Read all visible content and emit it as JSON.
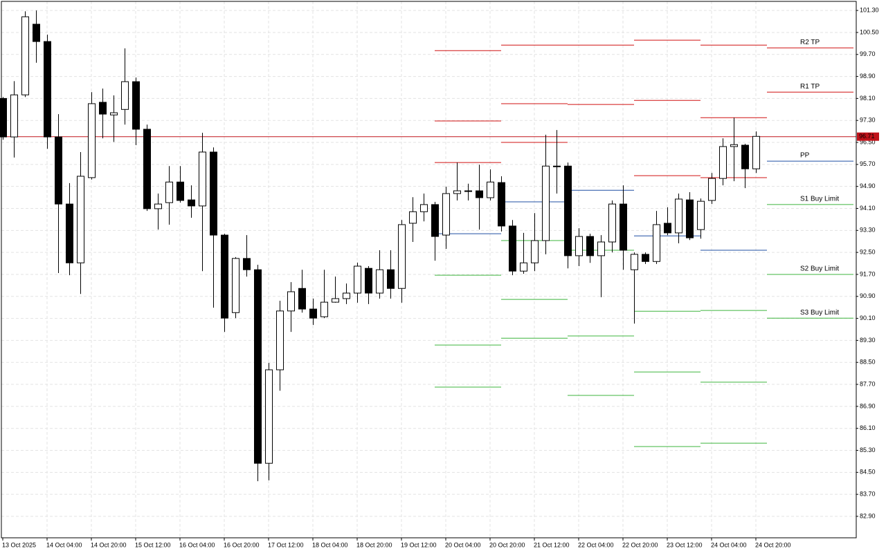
{
  "chart_data": {
    "type": "candlestick",
    "categories": [
      "13 Oct 2025",
      null,
      null,
      null,
      "14 Oct 04:00",
      null,
      null,
      null,
      "14 Oct 20:00",
      null,
      null,
      null,
      "15 Oct 12:00",
      null,
      null,
      null,
      "16 Oct 04:00",
      null,
      null,
      null,
      "16 Oct 20:00",
      null,
      null,
      null,
      "17 Oct 12:00",
      null,
      null,
      null,
      "18 Oct 04:00",
      null,
      null,
      null,
      "18 Oct 20:00",
      null,
      null,
      null,
      "19 Oct 12:00",
      null,
      null,
      null,
      "20 Oct 04:00",
      null,
      null,
      null,
      "20 Oct 20:00",
      null,
      null,
      null,
      "21 Oct 12:00",
      null,
      null,
      null,
      "22 Oct 04:00",
      null,
      null,
      null,
      "22 Oct 20:00",
      null,
      null,
      null,
      "23 Oct 12:00",
      null,
      null,
      null,
      "24 Oct 04:00",
      null,
      null,
      null,
      "24 Oct 20:00"
    ],
    "ohlc": {
      "open": [
        98.1,
        96.7,
        98.23,
        100.8,
        100.17,
        96.7,
        94.26,
        92.12,
        95.22,
        97.96,
        97.5,
        97.7,
        98.71,
        96.98,
        94.09,
        94.31,
        95.06,
        94.41,
        94.19,
        96.15,
        93.13,
        90.31,
        92.28,
        91.87,
        84.83,
        88.23,
        90.37,
        91.19,
        90.44,
        90.16,
        90.69,
        90.82,
        91.02,
        91.92,
        91.02,
        91.87,
        91.19,
        93.56,
        93.98,
        94.24,
        93.13,
        94.64,
        94.74,
        94.74,
        94.49,
        95.04,
        93.46,
        91.82,
        92.12,
        92.93,
        95.64,
        95.64,
        92.38,
        93.08,
        92.38,
        92.88,
        94.26,
        91.87,
        92.43,
        92.17,
        93.56,
        93.21,
        94.41,
        93.33,
        94.39,
        95.19,
        96.35,
        96.4,
        95.54
      ],
      "high": [
        98.15,
        98.73,
        101.27,
        101.3,
        100.42,
        97.53,
        95.02,
        96.15,
        98.33,
        98.46,
        98.21,
        99.92,
        98.86,
        97.15,
        94.64,
        95.64,
        95.64,
        94.94,
        96.85,
        96.32,
        93.18,
        92.33,
        93.13,
        92.05,
        88.48,
        90.74,
        91.42,
        91.87,
        90.82,
        91.87,
        91.62,
        91.37,
        92.13,
        92.0,
        92.58,
        92.58,
        93.68,
        94.51,
        94.64,
        94.34,
        94.89,
        95.77,
        95.0,
        95.69,
        95.52,
        95.27,
        93.68,
        93.21,
        93.93,
        96.78,
        96.95,
        95.77,
        93.38,
        93.18,
        93.13,
        94.39,
        94.94,
        92.5,
        92.5,
        94.01,
        94.14,
        94.64,
        94.69,
        94.46,
        95.39,
        96.65,
        97.4,
        96.45,
        96.9
      ],
      "low": [
        96.6,
        95.95,
        98.15,
        99.4,
        96.27,
        91.75,
        91.67,
        90.99,
        95.15,
        96.65,
        96.52,
        97.15,
        96.4,
        94.01,
        93.33,
        93.51,
        94.31,
        93.76,
        91.82,
        90.49,
        89.61,
        90.11,
        91.62,
        84.18,
        84.21,
        87.47,
        89.61,
        90.31,
        89.86,
        90.11,
        90.67,
        90.62,
        90.67,
        90.62,
        90.82,
        90.82,
        90.67,
        92.88,
        93.63,
        92.2,
        92.63,
        94.39,
        94.39,
        93.33,
        94.39,
        93.26,
        91.67,
        91.72,
        91.82,
        92.43,
        94.64,
        91.92,
        92.0,
        92.12,
        90.87,
        92.5,
        91.87,
        89.91,
        92.08,
        92.08,
        93.13,
        92.83,
        92.95,
        93.0,
        94.26,
        94.94,
        95.09,
        94.84,
        95.39
      ],
      "close": [
        96.7,
        98.23,
        101.07,
        100.17,
        96.7,
        94.26,
        92.12,
        95.27,
        97.91,
        97.53,
        97.58,
        98.71,
        96.98,
        94.09,
        94.26,
        95.06,
        94.39,
        94.19,
        96.15,
        93.13,
        90.11,
        92.28,
        91.87,
        84.83,
        88.23,
        90.37,
        91.07,
        90.44,
        90.11,
        90.69,
        90.82,
        91.02,
        92.0,
        91.02,
        91.87,
        91.19,
        93.51,
        93.98,
        94.24,
        93.08,
        94.64,
        94.74,
        94.72,
        94.49,
        95.06,
        93.46,
        91.82,
        92.12,
        92.93,
        95.64,
        95.62,
        92.38,
        93.08,
        92.38,
        92.88,
        94.26,
        92.58,
        92.43,
        92.17,
        93.51,
        93.21,
        94.44,
        93.03,
        94.36,
        95.19,
        96.35,
        96.42,
        95.54,
        96.72
      ]
    },
    "bull_color": "#ffffff",
    "bear_color": "#000000",
    "ylim": [
      82.12,
      101.63
    ],
    "yticks": [
      {
        "value": 101.3,
        "label": "101.30"
      },
      {
        "value": 100.5,
        "label": "100.50"
      },
      {
        "value": 99.7,
        "label": "99.70"
      },
      {
        "value": 98.9,
        "label": "98.90"
      },
      {
        "value": 98.1,
        "label": "98.10"
      },
      {
        "value": 97.3,
        "label": "97.30"
      },
      {
        "value": 96.5,
        "label": "96.50"
      },
      {
        "value": 95.7,
        "label": "95.70"
      },
      {
        "value": 94.9,
        "label": "94.90"
      },
      {
        "value": 94.1,
        "label": "94.10"
      },
      {
        "value": 93.3,
        "label": "93.30"
      },
      {
        "value": 92.5,
        "label": "92.50"
      },
      {
        "value": 91.7,
        "label": "91.70"
      },
      {
        "value": 90.9,
        "label": "90.90"
      },
      {
        "value": 90.1,
        "label": "90.10"
      },
      {
        "value": 89.3,
        "label": "89.30"
      },
      {
        "value": 88.5,
        "label": "88.50"
      },
      {
        "value": 87.7,
        "label": "87.70"
      },
      {
        "value": 86.9,
        "label": "86.90"
      },
      {
        "value": 86.1,
        "label": "86.10"
      },
      {
        "value": 85.3,
        "label": "85.30"
      },
      {
        "value": 84.5,
        "label": "84.50"
      },
      {
        "value": 83.7,
        "label": "83.70"
      },
      {
        "value": 82.9,
        "label": "82.90"
      }
    ],
    "grid": true,
    "current_price": 96.71,
    "current_price_color": "#c0121a",
    "sessions": [
      {
        "from": 39,
        "to": 45,
        "levels": [
          {
            "value": 99.84,
            "color": "#d01010"
          },
          {
            "value": 97.28,
            "color": "#d01010"
          },
          {
            "value": 95.77,
            "color": "#d01010"
          },
          {
            "value": 93.18,
            "color": "#1f4fa3"
          },
          {
            "value": 91.67,
            "color": "#3cb43c"
          },
          {
            "value": 89.13,
            "color": "#3cb43c"
          },
          {
            "value": 87.6,
            "color": "#3cb43c"
          }
        ]
      },
      {
        "from": 45,
        "to": 51,
        "levels": [
          {
            "value": 100.04,
            "color": "#d01010"
          },
          {
            "value": 97.91,
            "color": "#d01010"
          },
          {
            "value": 96.5,
            "color": "#d01010"
          },
          {
            "value": 94.34,
            "color": "#1f4fa3"
          },
          {
            "value": 92.93,
            "color": "#3cb43c"
          },
          {
            "value": 90.79,
            "color": "#3cb43c"
          },
          {
            "value": 89.38,
            "color": "#3cb43c"
          }
        ]
      },
      {
        "from": 51,
        "to": 57,
        "levels": [
          {
            "value": 100.04,
            "color": "#d01010"
          },
          {
            "value": 97.88,
            "color": "#d01010"
          },
          {
            "value": 94.76,
            "color": "#1f4fa3"
          },
          {
            "value": 92.58,
            "color": "#3cb43c"
          },
          {
            "value": 89.46,
            "color": "#3cb43c"
          },
          {
            "value": 87.3,
            "color": "#3cb43c"
          }
        ]
      },
      {
        "from": 57,
        "to": 63,
        "levels": [
          {
            "value": 100.22,
            "color": "#d01010"
          },
          {
            "value": 98.03,
            "color": "#d01010"
          },
          {
            "value": 95.29,
            "color": "#d01010"
          },
          {
            "value": 93.1,
            "color": "#1f4fa3"
          },
          {
            "value": 90.36,
            "color": "#3cb43c"
          },
          {
            "value": 88.15,
            "color": "#3cb43c"
          },
          {
            "value": 85.44,
            "color": "#3cb43c"
          }
        ]
      },
      {
        "from": 63,
        "to": 69,
        "levels": [
          {
            "value": 100.04,
            "color": "#d01010"
          },
          {
            "value": 97.4,
            "color": "#d01010"
          },
          {
            "value": 95.22,
            "color": "#d01010"
          },
          {
            "value": 92.58,
            "color": "#1f4fa3"
          },
          {
            "value": 90.39,
            "color": "#3cb43c"
          },
          {
            "value": 87.78,
            "color": "#3cb43c"
          },
          {
            "value": 85.56,
            "color": "#3cb43c"
          }
        ]
      },
      {
        "from": 69,
        "to": 77,
        "levels": [
          {
            "value": 99.94,
            "color": "#d01010",
            "label": "R2 TP"
          },
          {
            "value": 98.33,
            "color": "#d01010",
            "label": "R1 TP"
          },
          {
            "value": 95.82,
            "color": "#1f4fa3",
            "label": "PP"
          },
          {
            "value": 94.24,
            "color": "#3cb43c",
            "label": "S1 Buy Limit"
          },
          {
            "value": 91.7,
            "color": "#3cb43c",
            "label": "S2 Buy Limit"
          },
          {
            "value": 90.11,
            "color": "#3cb43c",
            "label": "S3 Buy Limit"
          }
        ]
      }
    ]
  }
}
